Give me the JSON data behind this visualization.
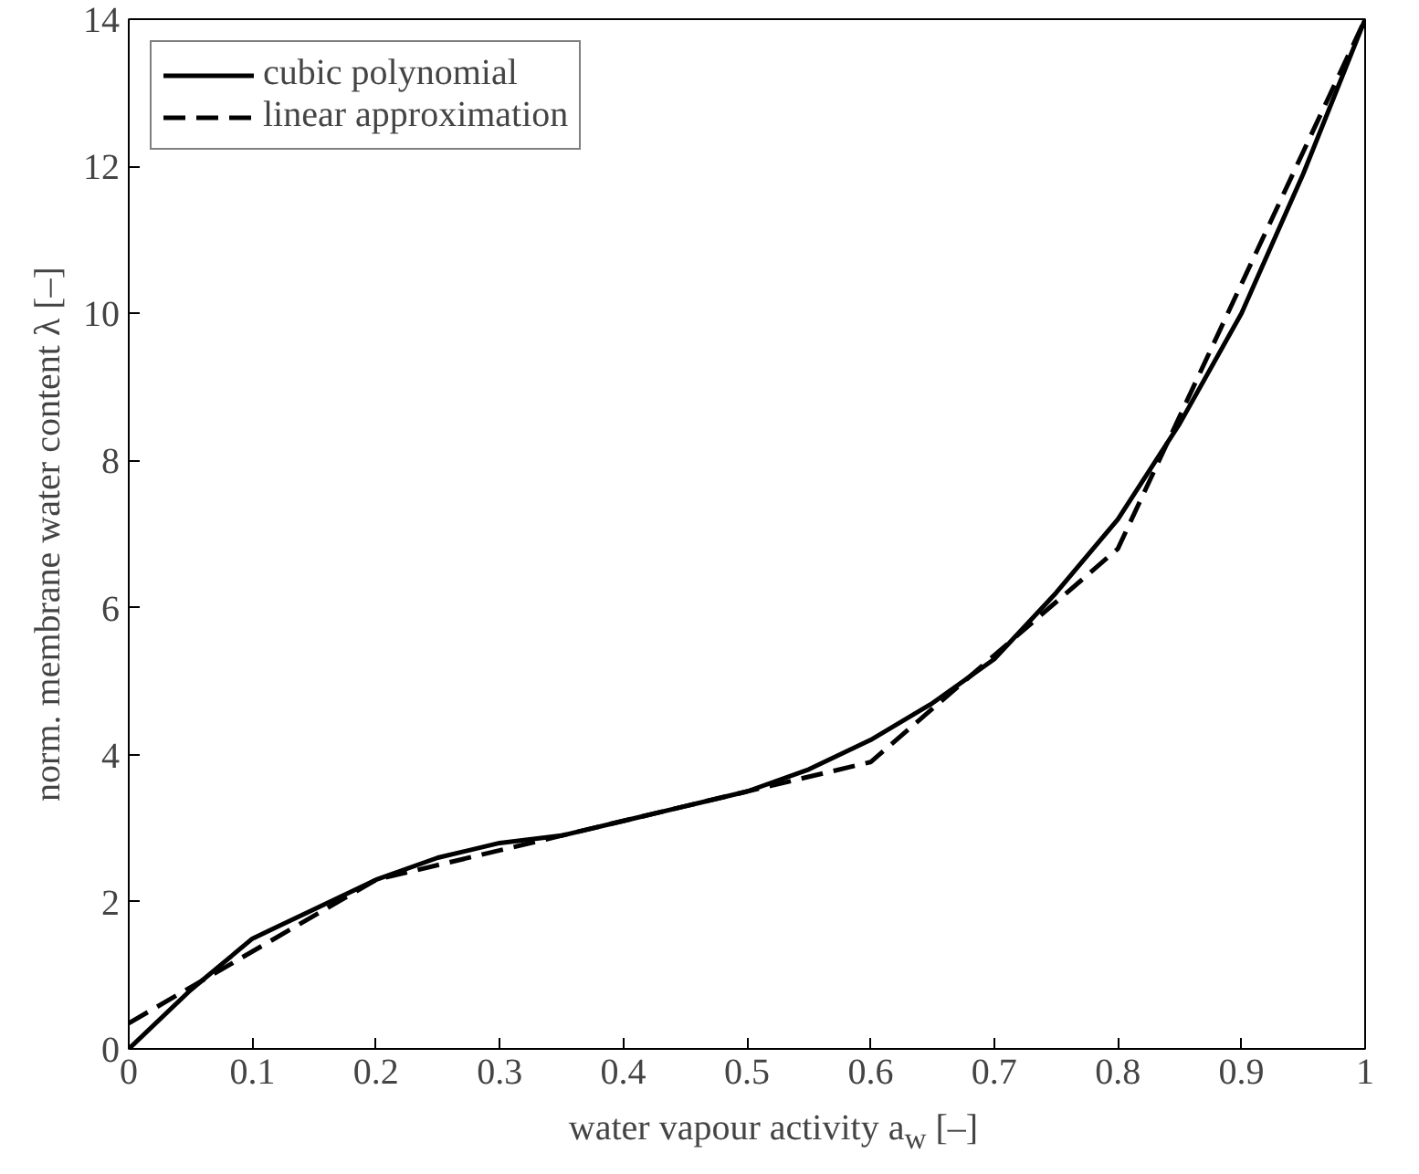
{
  "chart_data": {
    "type": "line",
    "xlabel": "water vapour activity a$_{w}$ [–]",
    "ylabel": "norm. membrane water content λ [–]",
    "xlim": [
      0,
      1
    ],
    "ylim": [
      0,
      14
    ],
    "xticks": [
      0,
      0.1,
      0.2,
      0.3,
      0.4,
      0.5,
      0.6,
      0.7,
      0.8,
      0.9,
      1
    ],
    "yticks": [
      0,
      2,
      4,
      6,
      8,
      10,
      12,
      14
    ],
    "grid": false,
    "legend": "top left",
    "marker": "none",
    "series": [
      {
        "name": "cubic polynomial",
        "color": "#000000",
        "line_style": "solid",
        "x": [
          0,
          0.05,
          0.1,
          0.15,
          0.2,
          0.25,
          0.3,
          0.35,
          0.4,
          0.45,
          0.5,
          0.55,
          0.6,
          0.65,
          0.7,
          0.75,
          0.8,
          0.85,
          0.9,
          0.95,
          1
        ],
        "values": [
          0.0,
          0.8,
          1.5,
          1.9,
          2.3,
          2.6,
          2.8,
          2.9,
          3.1,
          3.3,
          3.5,
          3.8,
          4.2,
          4.7,
          5.3,
          6.2,
          7.2,
          8.5,
          10.0,
          11.9,
          14.0
        ]
      },
      {
        "name": "linear approximation",
        "color": "#000000",
        "line_style": "dashed",
        "x": [
          0,
          0.2,
          0.6,
          0.8,
          1
        ],
        "values": [
          0.35,
          2.3,
          3.9,
          6.8,
          14.0
        ]
      }
    ]
  }
}
